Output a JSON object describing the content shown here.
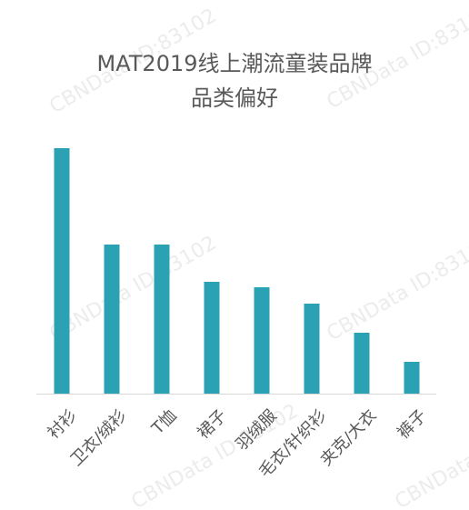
{
  "chart_data": {
    "type": "bar",
    "title": [
      "MAT2019线上潮流童装品牌",
      "品类偏好"
    ],
    "watermark": "CBNData ID:83102",
    "categories": [
      "衬衫",
      "卫衣/绒衫",
      "T恤",
      "裙子",
      "羽绒服",
      "毛衣/针织衫",
      "夹克/大衣",
      "裤子"
    ],
    "values": [
      270,
      164,
      164,
      123,
      117,
      99,
      67,
      35
    ],
    "color": "#2ba1b4"
  }
}
